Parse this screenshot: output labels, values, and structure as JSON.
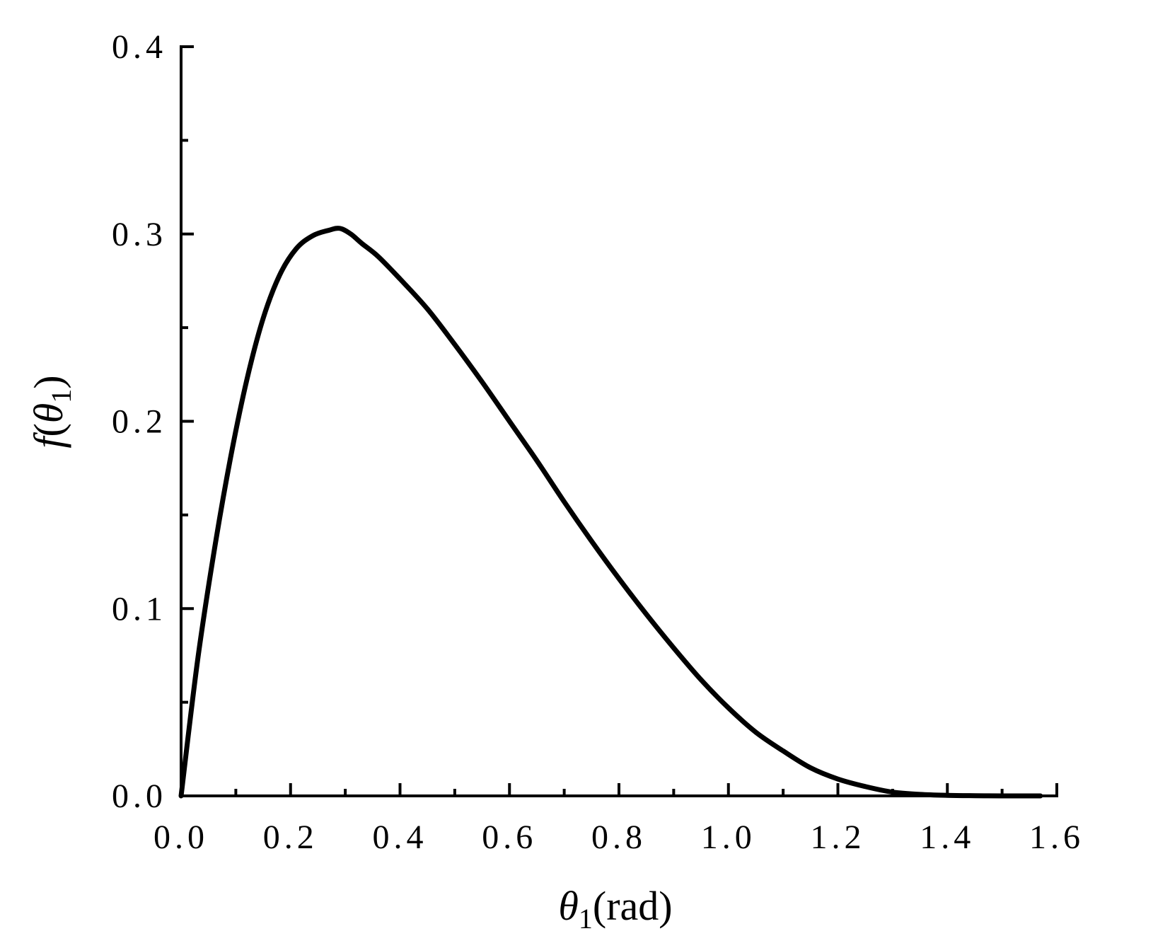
{
  "chart_data": {
    "type": "line",
    "title": "",
    "xlabel": {
      "symbol": "θ",
      "sub": "1",
      "unit": "(rad)"
    },
    "ylabel": {
      "func": "f",
      "open": "(",
      "symbol": "θ",
      "sub": "1",
      "close": ")"
    },
    "xlim": [
      0.0,
      1.6
    ],
    "ylim": [
      0.0,
      0.4
    ],
    "x_ticks": [
      0.0,
      0.2,
      0.4,
      0.6,
      0.8,
      1.0,
      1.2,
      1.4,
      1.6
    ],
    "x_tick_labels": [
      "0.0",
      "0.2",
      "0.4",
      "0.6",
      "0.8",
      "1.0",
      "1.2",
      "1.4",
      "1.6"
    ],
    "y_ticks": [
      0.0,
      0.1,
      0.2,
      0.3,
      0.4
    ],
    "y_tick_labels": [
      "0.0",
      "0.1",
      "0.2",
      "0.3",
      "0.4"
    ],
    "x_minor_ticks": [
      0.1,
      0.3,
      0.5,
      0.7,
      0.9,
      1.1,
      1.3,
      1.5
    ],
    "y_minor_ticks": [
      0.05,
      0.15,
      0.25,
      0.35
    ],
    "grid": false,
    "legend": "none",
    "series": [
      {
        "color": "#000000",
        "x": [
          0.0,
          0.03,
          0.06,
          0.09,
          0.12,
          0.15,
          0.18,
          0.21,
          0.24,
          0.27,
          0.29,
          0.31,
          0.33,
          0.36,
          0.4,
          0.45,
          0.5,
          0.55,
          0.6,
          0.65,
          0.7,
          0.75,
          0.8,
          0.85,
          0.9,
          0.95,
          1.0,
          1.05,
          1.1,
          1.15,
          1.2,
          1.25,
          1.3,
          1.35,
          1.4,
          1.45,
          1.5,
          1.53,
          1.57
        ],
        "y": [
          0.0,
          0.072,
          0.13,
          0.18,
          0.222,
          0.255,
          0.278,
          0.292,
          0.299,
          0.302,
          0.303,
          0.3,
          0.295,
          0.288,
          0.276,
          0.26,
          0.241,
          0.221,
          0.2,
          0.179,
          0.157,
          0.136,
          0.116,
          0.097,
          0.079,
          0.062,
          0.047,
          0.034,
          0.024,
          0.015,
          0.009,
          0.005,
          0.002,
          0.0008,
          0.0003,
          0.0001,
          0.0,
          0.0,
          0.0
        ]
      }
    ]
  }
}
